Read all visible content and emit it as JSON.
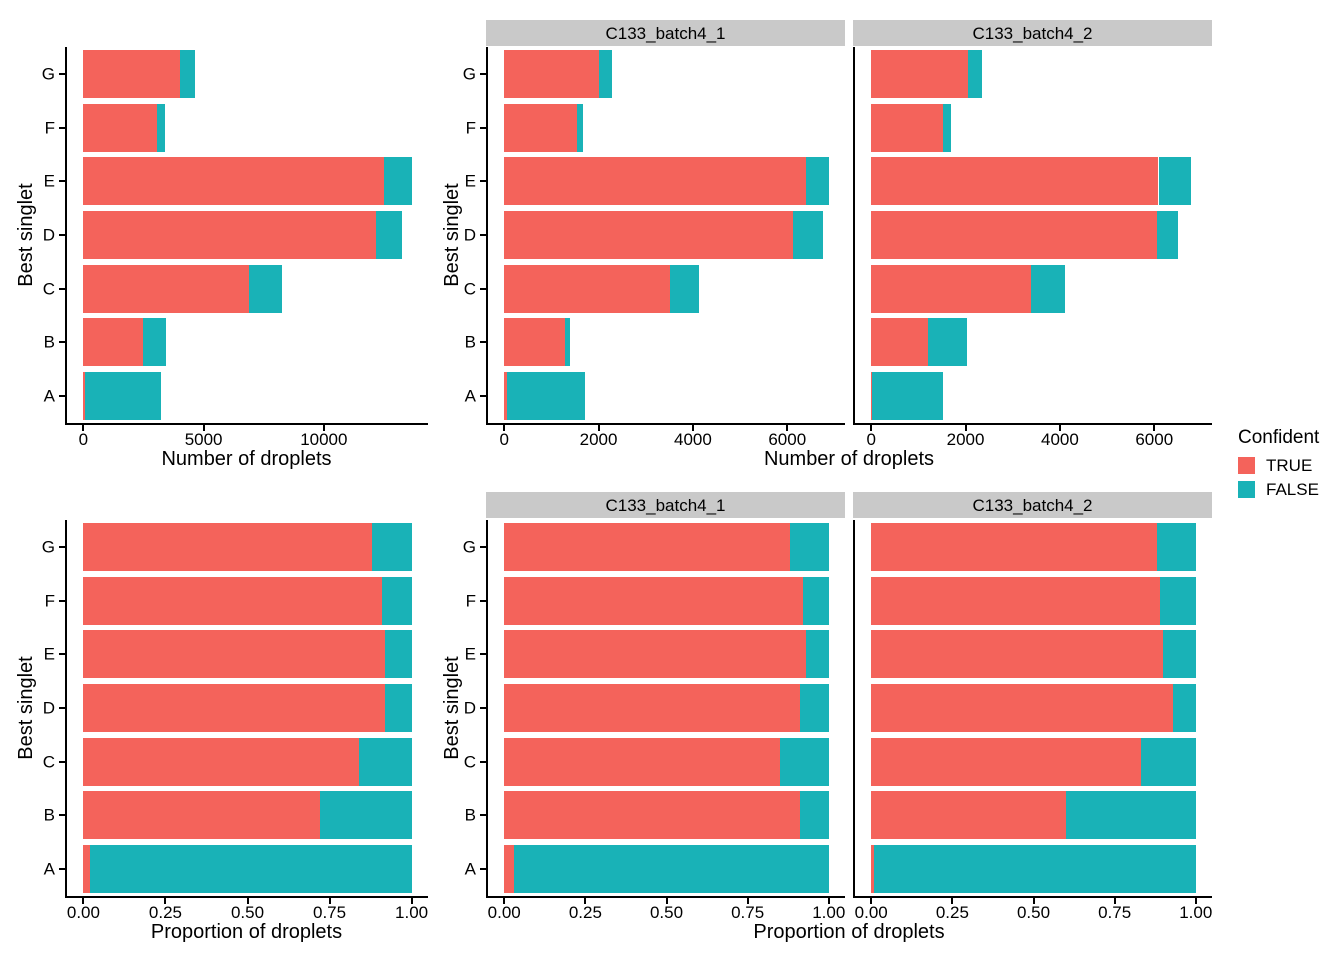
{
  "figure": {
    "background": "#FFFFFF",
    "legend": {
      "title": "Confident",
      "items": [
        {
          "label": "TRUE",
          "color": "#F4635B"
        },
        {
          "label": "FALSE",
          "color": "#19B2B7"
        }
      ]
    }
  },
  "colors": {
    "true_fill": "#F4635B",
    "false_fill": "#19B2B7",
    "strip_bg": "#C9C9C9",
    "axis": "#000000",
    "text": "#000000"
  },
  "chart_data": [
    {
      "id": "counts_overall",
      "type": "bar",
      "orientation": "horizontal",
      "stacked": true,
      "title": "",
      "xlabel": "Number of droplets",
      "ylabel": "Best singlet",
      "categories": [
        "A",
        "B",
        "C",
        "D",
        "E",
        "F",
        "G"
      ],
      "x_data_max": 13650,
      "x_ticks": [
        {
          "v": 0,
          "label": "0"
        },
        {
          "v": 5000,
          "label": "5000"
        },
        {
          "v": 10000,
          "label": "10000"
        }
      ],
      "facets": [
        {
          "label": "",
          "series": [
            {
              "name": "TRUE",
              "values": [
                50,
                2470,
                6900,
                12150,
                12500,
                3050,
                4000
              ]
            },
            {
              "name": "FALSE",
              "values": [
                3170,
                960,
                1350,
                1100,
                1150,
                330,
                650
              ]
            }
          ]
        }
      ]
    },
    {
      "id": "counts_by_sample",
      "type": "bar",
      "orientation": "horizontal",
      "stacked": true,
      "title": "",
      "xlabel": "Number of droplets",
      "ylabel": "Best singlet",
      "categories": [
        "A",
        "B",
        "C",
        "D",
        "E",
        "F",
        "G"
      ],
      "x_data_max": 6880,
      "x_ticks": [
        {
          "v": 0,
          "label": "0"
        },
        {
          "v": 2000,
          "label": "2000"
        },
        {
          "v": 4000,
          "label": "4000"
        },
        {
          "v": 6000,
          "label": "6000"
        }
      ],
      "facets": [
        {
          "label": "C133_batch4_1",
          "series": [
            {
              "name": "TRUE",
              "values": [
                50,
                1280,
                3510,
                6130,
                6400,
                1550,
                2000
              ]
            },
            {
              "name": "FALSE",
              "values": [
                1670,
                120,
                610,
                620,
                480,
                120,
                280
              ]
            }
          ]
        },
        {
          "label": "C133_batch4_2",
          "series": [
            {
              "name": "TRUE",
              "values": [
                20,
                1200,
                3380,
                6060,
                6090,
                1530,
                2060
              ]
            },
            {
              "name": "FALSE",
              "values": [
                1500,
                820,
                720,
                440,
                690,
                160,
                290
              ]
            }
          ]
        }
      ]
    },
    {
      "id": "prop_overall",
      "type": "bar",
      "orientation": "horizontal",
      "stacked": true,
      "title": "",
      "xlabel": "Proportion of droplets",
      "ylabel": "Best singlet",
      "categories": [
        "A",
        "B",
        "C",
        "D",
        "E",
        "F",
        "G"
      ],
      "x_data_max": 1.0,
      "x_ticks": [
        {
          "v": 0,
          "label": "0.00"
        },
        {
          "v": 0.25,
          "label": "0.25"
        },
        {
          "v": 0.5,
          "label": "0.50"
        },
        {
          "v": 0.75,
          "label": "0.75"
        },
        {
          "v": 1.0,
          "label": "1.00"
        }
      ],
      "facets": [
        {
          "label": "",
          "series": [
            {
              "name": "TRUE",
              "values": [
                0.02,
                0.72,
                0.84,
                0.92,
                0.92,
                0.91,
                0.88
              ]
            },
            {
              "name": "FALSE",
              "values": [
                0.98,
                0.28,
                0.16,
                0.08,
                0.08,
                0.09,
                0.12
              ]
            }
          ]
        }
      ]
    },
    {
      "id": "prop_by_sample",
      "type": "bar",
      "orientation": "horizontal",
      "stacked": true,
      "title": "",
      "xlabel": "Proportion of droplets",
      "ylabel": "Best singlet",
      "categories": [
        "A",
        "B",
        "C",
        "D",
        "E",
        "F",
        "G"
      ],
      "x_data_max": 1.0,
      "x_ticks": [
        {
          "v": 0,
          "label": "0.00"
        },
        {
          "v": 0.25,
          "label": "0.25"
        },
        {
          "v": 0.5,
          "label": "0.50"
        },
        {
          "v": 0.75,
          "label": "0.75"
        },
        {
          "v": 1.0,
          "label": "1.00"
        }
      ],
      "facets": [
        {
          "label": "C133_batch4_1",
          "series": [
            {
              "name": "TRUE",
              "values": [
                0.03,
                0.91,
                0.85,
                0.91,
                0.93,
                0.92,
                0.88
              ]
            },
            {
              "name": "FALSE",
              "values": [
                0.97,
                0.09,
                0.15,
                0.09,
                0.07,
                0.08,
                0.12
              ]
            }
          ]
        },
        {
          "label": "C133_batch4_2",
          "series": [
            {
              "name": "TRUE",
              "values": [
                0.01,
                0.6,
                0.83,
                0.93,
                0.9,
                0.89,
                0.88
              ]
            },
            {
              "name": "FALSE",
              "values": [
                0.99,
                0.4,
                0.17,
                0.07,
                0.1,
                0.11,
                0.12
              ]
            }
          ]
        }
      ]
    }
  ]
}
